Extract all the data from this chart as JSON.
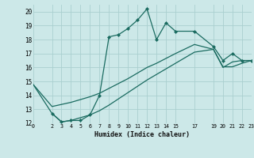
{
  "xlabel": "Humidex (Indice chaleur)",
  "bg_color": "#cce8e8",
  "grid_color": "#aacfcf",
  "line_color": "#1a6b60",
  "xlim": [
    0,
    23
  ],
  "ylim": [
    12,
    20.5
  ],
  "yticks": [
    12,
    13,
    14,
    15,
    16,
    17,
    18,
    19,
    20
  ],
  "xticks": [
    0,
    2,
    3,
    4,
    5,
    6,
    7,
    8,
    9,
    10,
    11,
    12,
    13,
    14,
    15,
    17,
    19,
    20,
    21,
    22,
    23
  ],
  "line1_x": [
    2,
    3,
    4,
    5,
    6,
    7,
    8,
    9,
    10,
    11,
    12,
    13,
    14,
    15,
    17,
    19,
    20,
    21,
    22,
    23
  ],
  "line1_y": [
    12.7,
    12.1,
    12.2,
    12.2,
    12.6,
    14.0,
    18.2,
    18.35,
    18.8,
    19.4,
    20.2,
    18.0,
    19.2,
    18.6,
    18.6,
    17.5,
    16.5,
    17.0,
    16.5,
    16.5
  ],
  "line2_x": [
    0,
    2,
    3,
    4,
    5,
    6,
    7,
    8,
    9,
    10,
    11,
    12,
    13,
    14,
    15,
    17,
    19,
    20,
    21,
    22,
    23
  ],
  "line2_y": [
    14.8,
    13.2,
    13.35,
    13.5,
    13.7,
    13.9,
    14.15,
    14.5,
    14.85,
    15.2,
    15.6,
    16.0,
    16.3,
    16.65,
    17.0,
    17.65,
    17.3,
    16.05,
    16.05,
    16.3,
    16.5
  ],
  "line3_x": [
    0,
    2,
    3,
    4,
    5,
    6,
    7,
    8,
    9,
    10,
    11,
    12,
    13,
    14,
    15,
    17,
    19,
    20,
    21,
    22,
    23
  ],
  "line3_y": [
    14.8,
    12.7,
    12.1,
    12.2,
    12.4,
    12.6,
    12.9,
    13.3,
    13.75,
    14.2,
    14.65,
    15.1,
    15.5,
    15.9,
    16.3,
    17.1,
    17.3,
    16.0,
    16.4,
    16.5,
    16.5
  ]
}
